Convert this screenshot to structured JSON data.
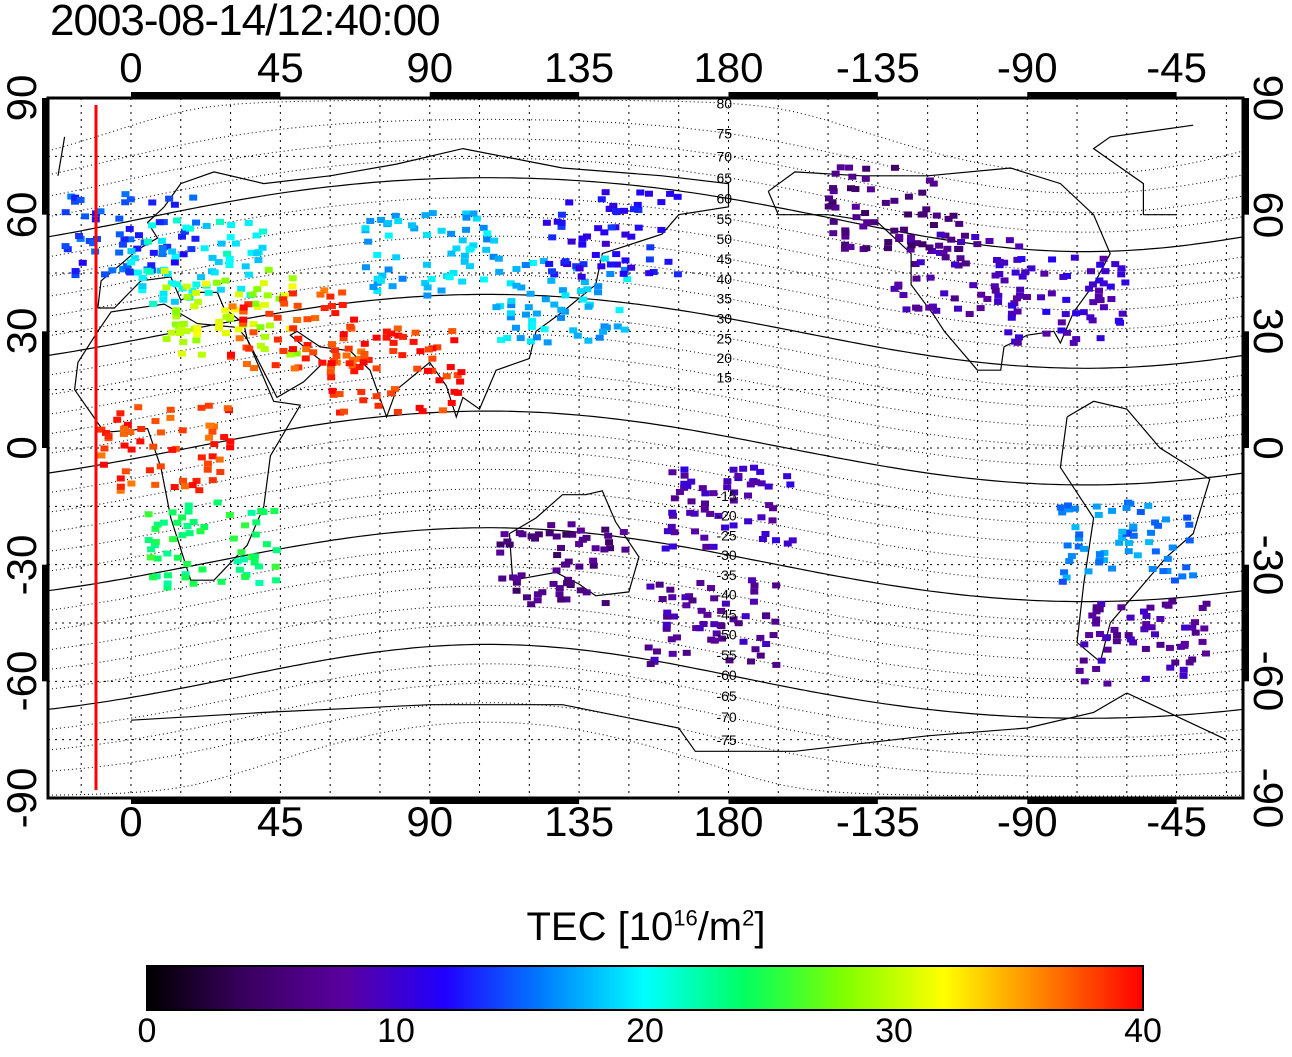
{
  "title": "2003-08-14/12:40:00",
  "map": {
    "lon_ticks_top": [
      "0",
      "45",
      "90",
      "135",
      "180",
      "-135",
      "-90",
      "-45"
    ],
    "lon_ticks_bottom": [
      "0",
      "45",
      "90",
      "135",
      "180",
      "-135",
      "-90",
      "-45"
    ],
    "lat_ticks_left": [
      "90",
      "60",
      "30",
      "0",
      "-30",
      "-60",
      "-90"
    ],
    "lat_ticks_right": [
      "90",
      "60",
      "30",
      "0",
      "-30",
      "-60",
      "-90"
    ],
    "contour_labels": [
      "80",
      "75",
      "70",
      "65",
      "60",
      "55",
      "50",
      "45",
      "40",
      "35",
      "30",
      "25",
      "20",
      "15",
      "-15",
      "-20",
      "-25",
      "-30",
      "-35",
      "-40",
      "-45",
      "-50",
      "-55",
      "-60",
      "-65",
      "-70",
      "-75"
    ],
    "terminator_color": "#ff0000"
  },
  "colorbar": {
    "label_main": "TEC  [10",
    "label_exp1": "16",
    "label_mid": "/m",
    "label_exp2": "2",
    "label_end": "]",
    "ticks": [
      "0",
      "10",
      "20",
      "30",
      "40"
    ],
    "colors": [
      "#000000",
      "#3a0060",
      "#5a00a0",
      "#2000ff",
      "#0080ff",
      "#00ffff",
      "#00ff60",
      "#80ff00",
      "#ffff00",
      "#ff8000",
      "#ff0000"
    ]
  },
  "chart_data": {
    "type": "heatmap",
    "title": "2003-08-14/12:40:00",
    "xlabel": "",
    "ylabel": "",
    "x_range_lon": [
      -25,
      335
    ],
    "y_range_lat": [
      -90,
      90
    ],
    "colorbar_range": [
      0,
      40
    ],
    "regions": [
      {
        "lon": 0,
        "lat": 55,
        "tec": 14
      },
      {
        "lon": 20,
        "lat": 48,
        "tec": 20
      },
      {
        "lon": 30,
        "lat": 35,
        "tec": 30
      },
      {
        "lon": 50,
        "lat": 30,
        "tec": 38
      },
      {
        "lon": 80,
        "lat": 20,
        "tec": 39
      },
      {
        "lon": 90,
        "lat": 50,
        "tec": 18
      },
      {
        "lon": 130,
        "lat": 38,
        "tec": 18
      },
      {
        "lon": 145,
        "lat": 55,
        "tec": 12
      },
      {
        "lon": 250,
        "lat": 45,
        "tec": 8
      },
      {
        "lon": 230,
        "lat": 62,
        "tec": 6
      },
      {
        "lon": 280,
        "lat": 38,
        "tec": 10
      },
      {
        "lon": 300,
        "lat": -25,
        "tec": 16
      },
      {
        "lon": 305,
        "lat": -50,
        "tec": 8
      },
      {
        "lon": 25,
        "lat": -25,
        "tec": 24
      },
      {
        "lon": 130,
        "lat": -30,
        "tec": 6
      },
      {
        "lon": 175,
        "lat": -45,
        "tec": 8
      },
      {
        "lon": 180,
        "lat": -15,
        "tec": 9
      },
      {
        "lon": 10,
        "lat": 0,
        "tec": 38
      }
    ]
  }
}
